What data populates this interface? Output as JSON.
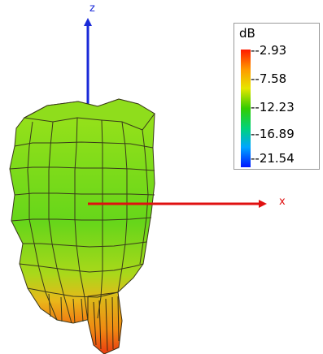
{
  "axes": {
    "z_label": "z",
    "x_label": "x",
    "z_color": "#1a2ad8",
    "x_color": "#e01010"
  },
  "legend": {
    "title": "dB",
    "ticks": [
      "--2.93",
      "--7.58",
      "--12.23",
      "--16.89",
      "--21.54"
    ],
    "colors": [
      "#ff1a00",
      "#ff9a00",
      "#e6e600",
      "#33cc00",
      "#00d27a",
      "#00a6ff",
      "#0015ff"
    ]
  }
}
